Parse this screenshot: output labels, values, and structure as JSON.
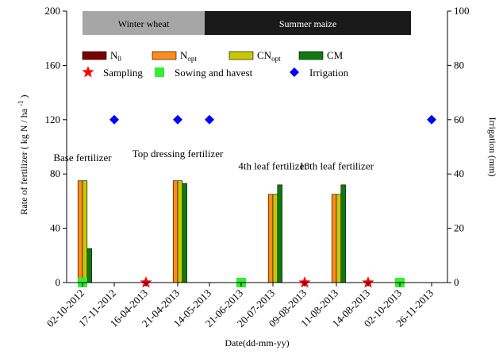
{
  "chart_data": {
    "type": "bar",
    "title": "",
    "xlabel": "Date(dd-mm-yy)",
    "ylabel": "Rate of fertilizer ( kg N / ha",
    "ylabel_sup": "-1",
    "ylabel_end": ")",
    "y2label": "Irrigation (mm)",
    "ylim": [
      0,
      200
    ],
    "y2lim": [
      0,
      100
    ],
    "yticks": [
      0,
      40,
      80,
      120,
      160,
      200
    ],
    "y2ticks": [
      0,
      20,
      40,
      60,
      80,
      100
    ],
    "categories": [
      "02-10-2012",
      "17-11-2012",
      "16-04-2013",
      "21-04-2013",
      "14-05-2013",
      "21-06-2013",
      "20-07-2013",
      "09-08-2013",
      "11-08-2013",
      "14-08-2013",
      "02-10-2013",
      "26-11-2013"
    ],
    "seasons": [
      {
        "label": "Winter wheat",
        "from": 0.5,
        "to": 4.35,
        "color": "#a6a6a6",
        "text_color": "#000000"
      },
      {
        "label": "Summer maize",
        "from": 4.35,
        "to": 10.85,
        "color": "#1a1a1a",
        "text_color": "#ffffff"
      }
    ],
    "series": [
      {
        "name": "N",
        "sub": "0",
        "color": "#7b0000",
        "values": [
          0,
          null,
          null,
          0,
          null,
          null,
          0,
          null,
          0,
          null,
          null,
          null
        ]
      },
      {
        "name": "N",
        "sub": "opt",
        "color": "#ff8c1a",
        "values": [
          75,
          null,
          null,
          75,
          null,
          null,
          65,
          null,
          65,
          null,
          null,
          null
        ]
      },
      {
        "name": "CN",
        "sub": "opt",
        "color": "#c8c800",
        "values": [
          75,
          null,
          null,
          75,
          null,
          null,
          65,
          null,
          65,
          null,
          null,
          null
        ]
      },
      {
        "name": "CM",
        "sub": "",
        "color": "#0f7a0f",
        "values": [
          25,
          null,
          null,
          73,
          null,
          null,
          72,
          null,
          72,
          null,
          null,
          null
        ]
      }
    ],
    "markers": [
      {
        "name": "Sampling",
        "shape": "star",
        "color": "#ff0000",
        "axis": "y",
        "points": [
          {
            "x": "16-04-2013",
            "y": 0
          },
          {
            "x": "09-08-2013",
            "y": 0
          },
          {
            "x": "14-08-2013",
            "y": 0
          }
        ]
      },
      {
        "name": "Sowing and havest",
        "shape": "square",
        "color": "#33ee33",
        "axis": "y",
        "points": [
          {
            "x": "02-10-2012",
            "y": 0
          },
          {
            "x": "21-06-2013",
            "y": 0
          },
          {
            "x": "02-10-2013",
            "y": 0
          }
        ]
      },
      {
        "name": "Irrigation",
        "shape": "diamond",
        "color": "#0000ff",
        "axis": "y2",
        "points": [
          {
            "x": "17-11-2012",
            "y": 60
          },
          {
            "x": "21-04-2013",
            "y": 60
          },
          {
            "x": "14-05-2013",
            "y": 60
          },
          {
            "x": "26-11-2013",
            "y": 60
          }
        ]
      }
    ],
    "annotations": [
      {
        "text": "Base fertilizer",
        "x": "02-10-2012",
        "y": 80
      },
      {
        "text": "Top dressing fertilizer",
        "x": "21-04-2013",
        "y": 83
      },
      {
        "text": "4th leaf fertilizer",
        "x": "20-07-2013",
        "y": 74
      },
      {
        "text": "10th leaf fertilizer",
        "x": "11-08-2013",
        "y": 74
      }
    ],
    "legend_position": "top-left",
    "grid": false
  }
}
